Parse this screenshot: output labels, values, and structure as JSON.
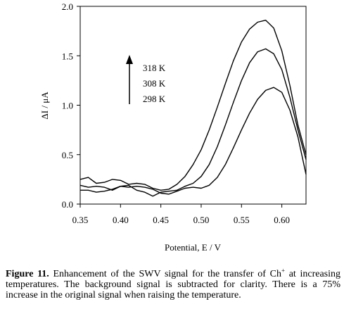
{
  "chart_data": {
    "type": "line",
    "xlabel": "Potential, E / V",
    "ylabel": "ΔI / μA",
    "xlim": [
      0.35,
      0.63
    ],
    "ylim": [
      0.0,
      2.0
    ],
    "xticks": [
      "0.35",
      "0.40",
      "0.45",
      "0.50",
      "0.55",
      "0.60"
    ],
    "yticks": [
      "0.0",
      "0.5",
      "1.0",
      "1.5",
      "2.0"
    ],
    "grid": false,
    "annotations": [
      "318 K",
      "308 K",
      "298 K"
    ],
    "series": [
      {
        "name": "318 K",
        "points": [
          [
            0.35,
            0.25
          ],
          [
            0.36,
            0.27
          ],
          [
            0.37,
            0.21
          ],
          [
            0.38,
            0.22
          ],
          [
            0.39,
            0.25
          ],
          [
            0.4,
            0.24
          ],
          [
            0.41,
            0.2
          ],
          [
            0.42,
            0.21
          ],
          [
            0.43,
            0.2
          ],
          [
            0.44,
            0.16
          ],
          [
            0.45,
            0.14
          ],
          [
            0.46,
            0.15
          ],
          [
            0.47,
            0.2
          ],
          [
            0.48,
            0.28
          ],
          [
            0.49,
            0.4
          ],
          [
            0.5,
            0.55
          ],
          [
            0.51,
            0.75
          ],
          [
            0.52,
            0.98
          ],
          [
            0.53,
            1.22
          ],
          [
            0.54,
            1.45
          ],
          [
            0.55,
            1.64
          ],
          [
            0.56,
            1.77
          ],
          [
            0.57,
            1.84
          ],
          [
            0.58,
            1.86
          ],
          [
            0.59,
            1.78
          ],
          [
            0.6,
            1.55
          ],
          [
            0.61,
            1.2
          ],
          [
            0.62,
            0.8
          ],
          [
            0.63,
            0.5
          ]
        ]
      },
      {
        "name": "308 K",
        "points": [
          [
            0.35,
            0.19
          ],
          [
            0.36,
            0.17
          ],
          [
            0.37,
            0.18
          ],
          [
            0.38,
            0.17
          ],
          [
            0.39,
            0.14
          ],
          [
            0.4,
            0.18
          ],
          [
            0.41,
            0.19
          ],
          [
            0.42,
            0.14
          ],
          [
            0.43,
            0.12
          ],
          [
            0.44,
            0.08
          ],
          [
            0.45,
            0.12
          ],
          [
            0.46,
            0.13
          ],
          [
            0.47,
            0.14
          ],
          [
            0.48,
            0.18
          ],
          [
            0.49,
            0.21
          ],
          [
            0.5,
            0.28
          ],
          [
            0.51,
            0.4
          ],
          [
            0.52,
            0.58
          ],
          [
            0.53,
            0.8
          ],
          [
            0.54,
            1.03
          ],
          [
            0.55,
            1.25
          ],
          [
            0.56,
            1.43
          ],
          [
            0.57,
            1.54
          ],
          [
            0.58,
            1.57
          ],
          [
            0.59,
            1.52
          ],
          [
            0.6,
            1.36
          ],
          [
            0.61,
            1.08
          ],
          [
            0.62,
            0.75
          ],
          [
            0.63,
            0.45
          ]
        ]
      },
      {
        "name": "298 K",
        "points": [
          [
            0.35,
            0.14
          ],
          [
            0.36,
            0.14
          ],
          [
            0.37,
            0.12
          ],
          [
            0.38,
            0.13
          ],
          [
            0.39,
            0.15
          ],
          [
            0.4,
            0.18
          ],
          [
            0.41,
            0.17
          ],
          [
            0.42,
            0.18
          ],
          [
            0.43,
            0.17
          ],
          [
            0.44,
            0.15
          ],
          [
            0.45,
            0.11
          ],
          [
            0.46,
            0.1
          ],
          [
            0.47,
            0.13
          ],
          [
            0.48,
            0.16
          ],
          [
            0.49,
            0.17
          ],
          [
            0.5,
            0.16
          ],
          [
            0.51,
            0.19
          ],
          [
            0.52,
            0.27
          ],
          [
            0.53,
            0.4
          ],
          [
            0.54,
            0.57
          ],
          [
            0.55,
            0.75
          ],
          [
            0.56,
            0.92
          ],
          [
            0.57,
            1.06
          ],
          [
            0.58,
            1.15
          ],
          [
            0.59,
            1.18
          ],
          [
            0.6,
            1.13
          ],
          [
            0.61,
            0.95
          ],
          [
            0.62,
            0.68
          ],
          [
            0.63,
            0.3
          ]
        ]
      }
    ]
  },
  "caption": {
    "label": "Figure 11.",
    "text_before_sup": " Enhancement of the SWV signal for the transfer of Ch",
    "superscript": "+",
    "text_after_sup": " at increasing temperatures. The background signal is subtracted for clarity. There is a 75% increase in the original signal when raising the temperature."
  }
}
